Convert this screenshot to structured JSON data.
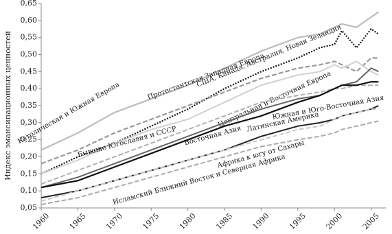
{
  "chart_data": {
    "type": "line",
    "y_label": "Индекс эмансипационных ценностей",
    "x": [
      1960,
      1965,
      1970,
      1975,
      1980,
      1985,
      1990,
      1995,
      1998,
      2000,
      2001,
      2003,
      2005,
      2006
    ],
    "xlim": [
      1960,
      2007
    ],
    "xticks": [
      1960,
      1965,
      1970,
      1975,
      1980,
      1985,
      1990,
      1995,
      2000,
      2005
    ],
    "ylim": [
      0.05,
      0.65
    ],
    "yticks": [
      {
        "value": 0.05,
        "label": "0,05"
      },
      {
        "value": 0.1,
        "label": "0,10"
      },
      {
        "value": 0.15,
        "label": "0,15"
      },
      {
        "value": 0.2,
        "label": "0,20"
      },
      {
        "value": 0.25,
        "label": "0,25"
      },
      {
        "value": 0.3,
        "label": "0,30"
      },
      {
        "value": 0.35,
        "label": "0,35"
      },
      {
        "value": 0.4,
        "label": "0,40"
      },
      {
        "value": 0.45,
        "label": "0,45"
      },
      {
        "value": 0.5,
        "label": "0,50"
      },
      {
        "value": 0.55,
        "label": "0,55"
      },
      {
        "value": 0.6,
        "label": "0,60"
      },
      {
        "value": 0.65,
        "label": "0,65"
      }
    ],
    "series": [
      {
        "name": "Протестантская Западная Европа",
        "color": "#bdbdbd",
        "style": "solid",
        "values": [
          0.22,
          0.27,
          0.33,
          0.37,
          0.41,
          0.46,
          0.51,
          0.55,
          0.56,
          0.58,
          0.59,
          0.58,
          0.61,
          0.625
        ]
      },
      {
        "name": "США, Канада, Австралия, Новая Зеландия",
        "color": "#111111",
        "style": "dotted",
        "values": [
          0.15,
          0.2,
          0.24,
          0.29,
          0.34,
          0.4,
          0.45,
          0.49,
          0.52,
          0.53,
          0.57,
          0.52,
          0.575,
          0.56
        ]
      },
      {
        "name": "Католическая и Южная Европа",
        "color": "#999999",
        "style": "dashed",
        "values": [
          0.18,
          0.22,
          0.27,
          0.31,
          0.35,
          0.39,
          0.43,
          0.46,
          0.47,
          0.48,
          0.47,
          0.45,
          0.49,
          0.49
        ]
      },
      {
        "name": "Центральная и Восточная Европа",
        "color": "#d0d0d0",
        "style": "solid",
        "values": [
          0.15,
          0.19,
          0.24,
          0.28,
          0.31,
          0.36,
          0.41,
          0.44,
          0.45,
          0.47,
          0.46,
          0.48,
          0.45,
          0.44
        ]
      },
      {
        "name": "Бывшие Югославия и СССР",
        "color": "#b0b0b0",
        "style": "dashed",
        "values": [
          0.12,
          0.16,
          0.2,
          0.24,
          0.28,
          0.32,
          0.36,
          0.38,
          0.39,
          0.4,
          0.4,
          0.41,
          0.41,
          0.41
        ]
      },
      {
        "name": "Восточная Азия",
        "color": "#666666",
        "style": "solid",
        "values": [
          0.11,
          0.14,
          0.18,
          0.22,
          0.26,
          0.3,
          0.34,
          0.37,
          0.38,
          0.4,
          0.41,
          0.42,
          0.46,
          0.45
        ]
      },
      {
        "name": "Латинская Америка",
        "color": "#111111",
        "style": "solid",
        "values": [
          0.11,
          0.13,
          0.17,
          0.21,
          0.25,
          0.29,
          0.32,
          0.36,
          0.38,
          0.4,
          0.41,
          0.41,
          0.42,
          0.42
        ]
      },
      {
        "name": "Южная и Юго-Восточная Азия",
        "color": "#222222",
        "style": "solid",
        "values": [
          0.08,
          0.1,
          0.13,
          0.16,
          0.19,
          0.22,
          0.26,
          0.29,
          0.3,
          0.31,
          0.32,
          0.33,
          0.34,
          0.35
        ]
      },
      {
        "name": "Африка к югу от Сахары",
        "color": "#c8c8c8",
        "style": "dashed",
        "values": [
          0.07,
          0.1,
          0.13,
          0.16,
          0.19,
          0.22,
          0.25,
          0.28,
          0.29,
          0.31,
          0.32,
          0.33,
          0.34,
          0.34
        ]
      },
      {
        "name": "Исламский Ближний Восток и Северная Африка",
        "color": "#aaaaaa",
        "style": "dashed",
        "values": [
          0.06,
          0.08,
          0.11,
          0.14,
          0.17,
          0.2,
          0.23,
          0.25,
          0.26,
          0.27,
          0.28,
          0.29,
          0.3,
          0.305
        ]
      }
    ]
  }
}
